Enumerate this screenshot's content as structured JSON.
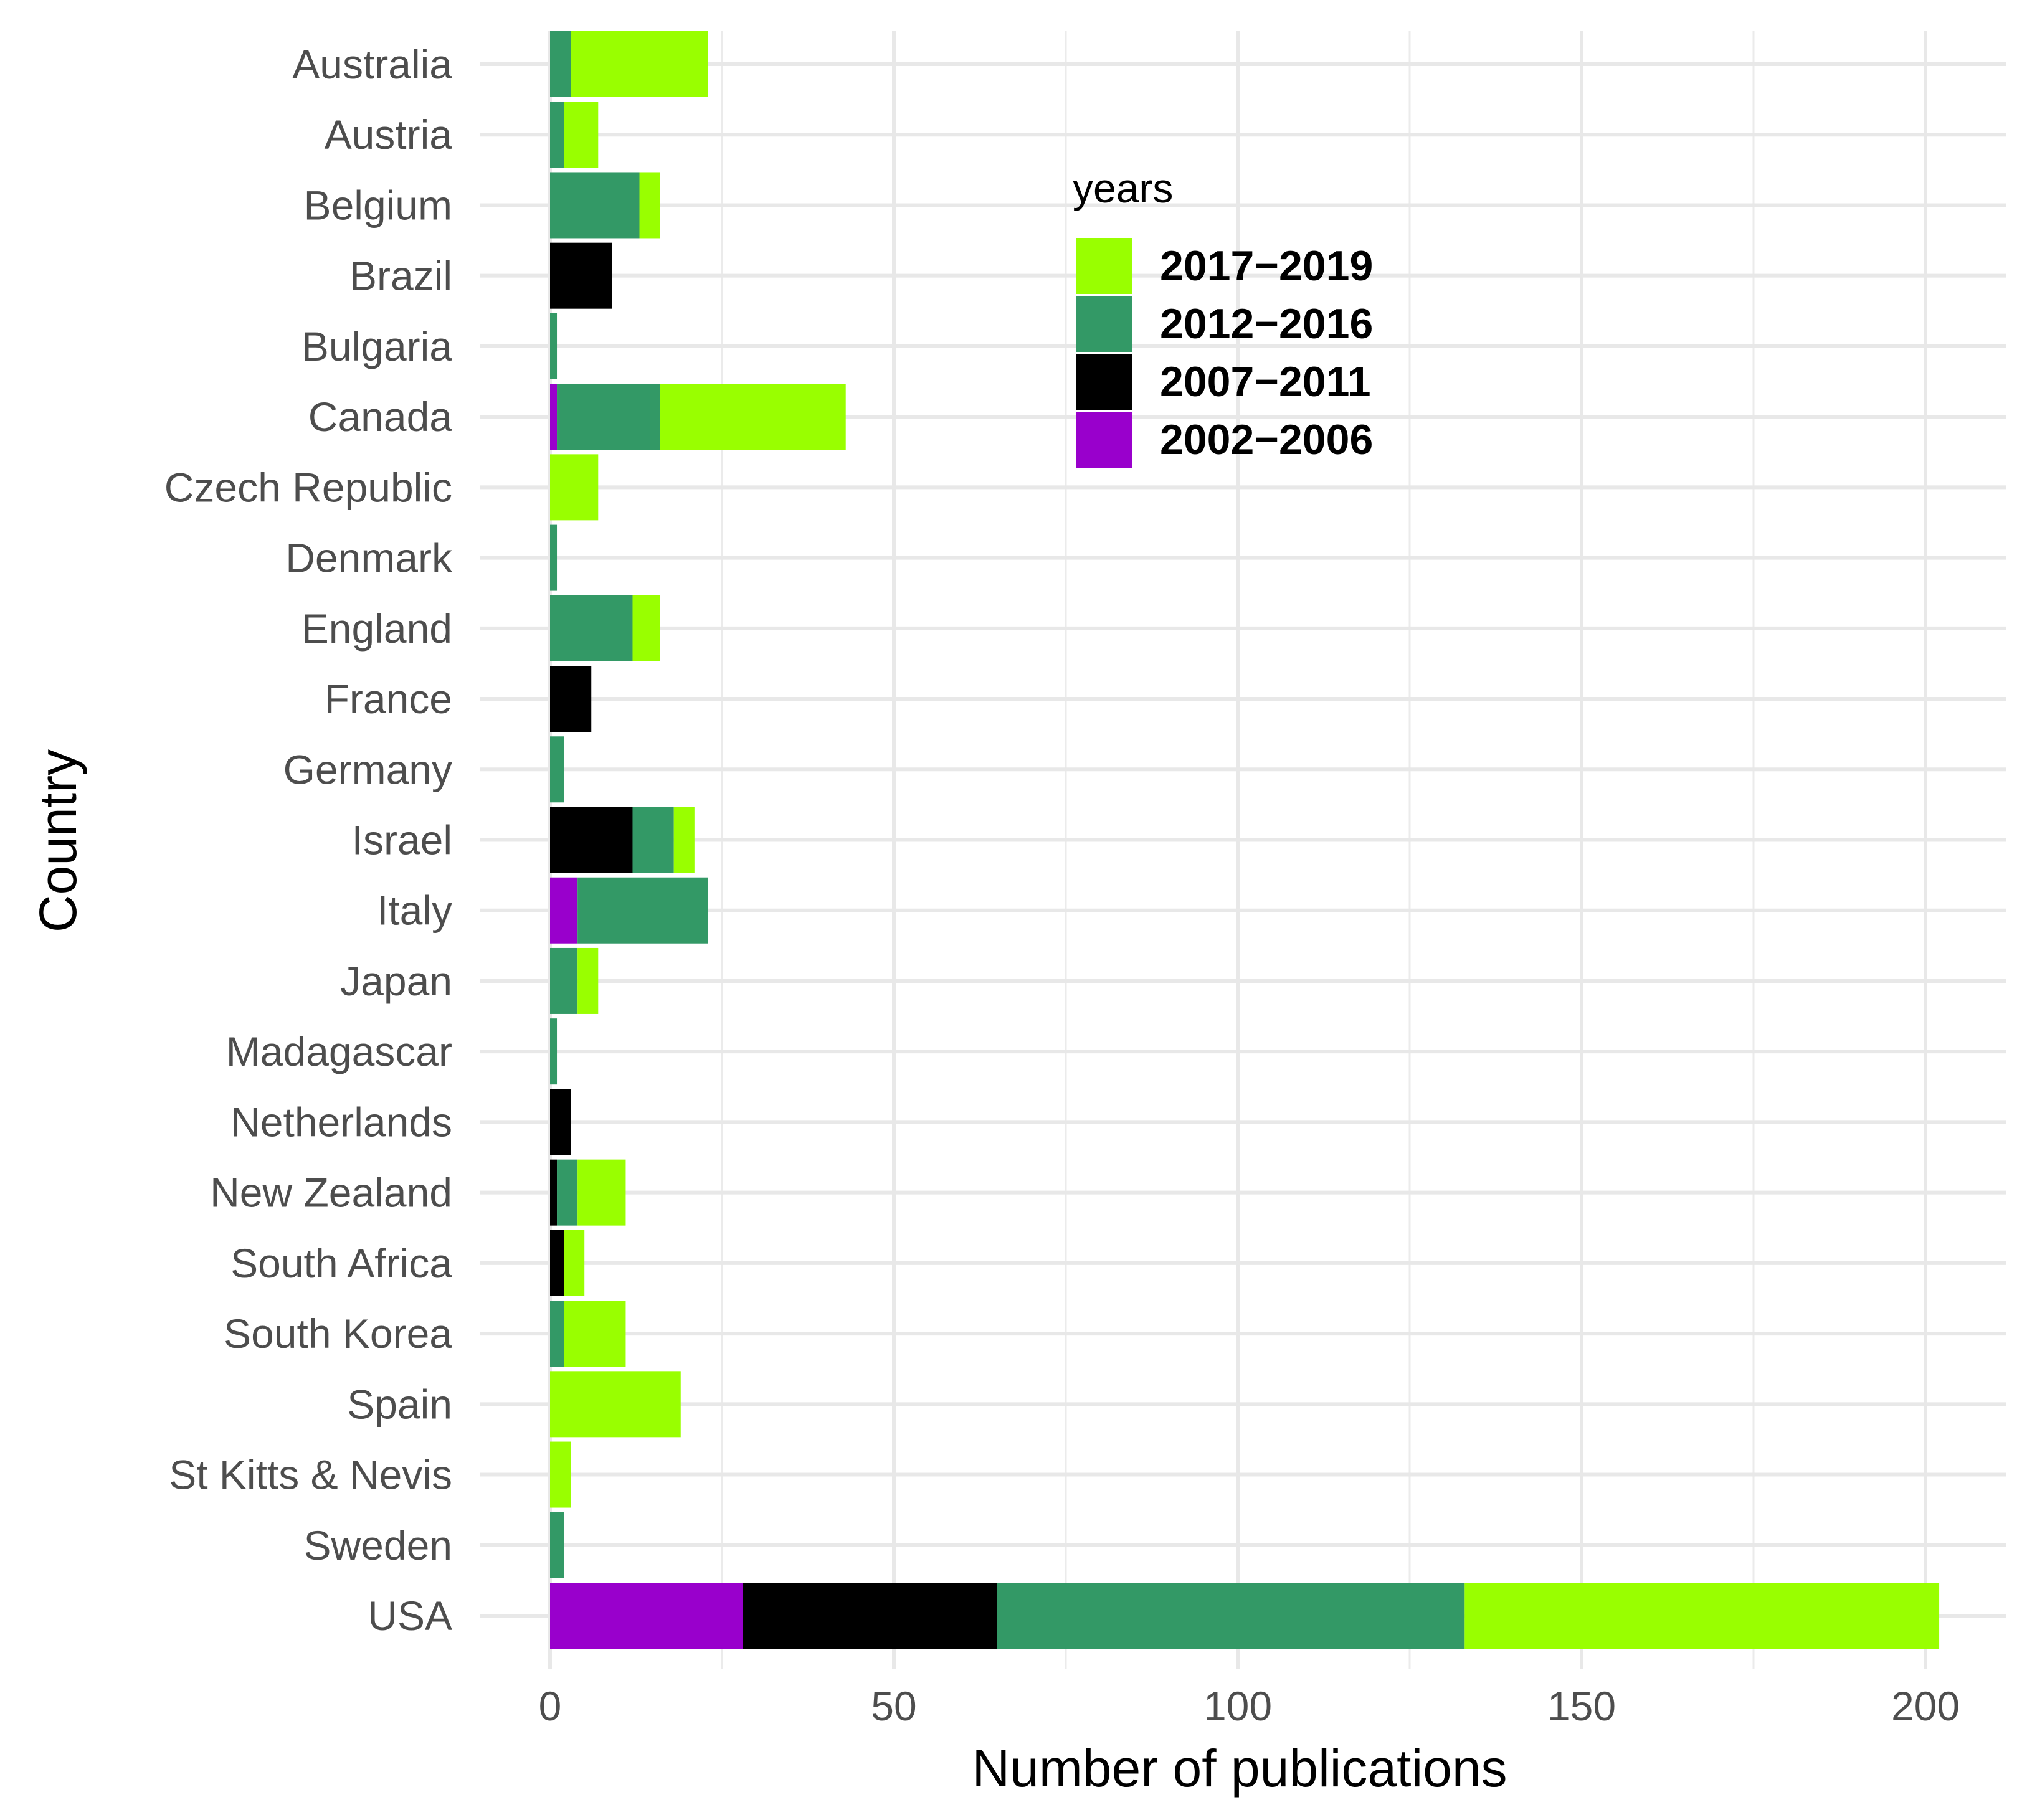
{
  "chart_data": {
    "type": "bar",
    "orientation": "horizontal",
    "stacked": true,
    "xlabel": "Number of publications",
    "ylabel": "Country",
    "xlim": [
      -10,
      210
    ],
    "xticks": [
      0,
      50,
      100,
      150,
      200
    ],
    "grid": true,
    "legend_title": "years",
    "legend_position": "top-center",
    "categories": [
      "Australia",
      "Austria",
      "Belgium",
      "Brazil",
      "Bulgaria",
      "Canada",
      "Czech Republic",
      "Denmark",
      "England",
      "France",
      "Germany",
      "Israel",
      "Italy",
      "Japan",
      "Madagascar",
      "Netherlands",
      "New Zealand",
      "South Africa",
      "South Korea",
      "Spain",
      "St Kitts & Nevis",
      "Sweden",
      "USA"
    ],
    "series": [
      {
        "name": "2002−2006",
        "color": "#9900CC",
        "values": [
          0,
          0,
          0,
          0,
          0,
          1,
          0,
          0,
          0,
          0,
          0,
          0,
          4,
          0,
          0,
          0,
          0,
          0,
          0,
          0,
          0,
          0,
          28
        ]
      },
      {
        "name": "2007−2011",
        "color": "#000000",
        "values": [
          0,
          0,
          0,
          9,
          0,
          0,
          0,
          0,
          0,
          6,
          0,
          12,
          0,
          0,
          0,
          3,
          1,
          2,
          0,
          0,
          0,
          0,
          37
        ]
      },
      {
        "name": "2012−2016",
        "color": "#339966",
        "values": [
          3,
          2,
          13,
          0,
          1,
          15,
          0,
          1,
          12,
          0,
          2,
          6,
          19,
          4,
          1,
          0,
          3,
          0,
          2,
          0,
          0,
          2,
          68
        ]
      },
      {
        "name": "2017−2019",
        "color": "#99FF00",
        "values": [
          20,
          5,
          3,
          0,
          0,
          27,
          7,
          0,
          4,
          0,
          0,
          3,
          0,
          3,
          0,
          0,
          7,
          3,
          9,
          19,
          3,
          0,
          69
        ]
      }
    ],
    "legend_order": [
      "2017−2019",
      "2012−2016",
      "2007−2011",
      "2002−2006"
    ]
  }
}
